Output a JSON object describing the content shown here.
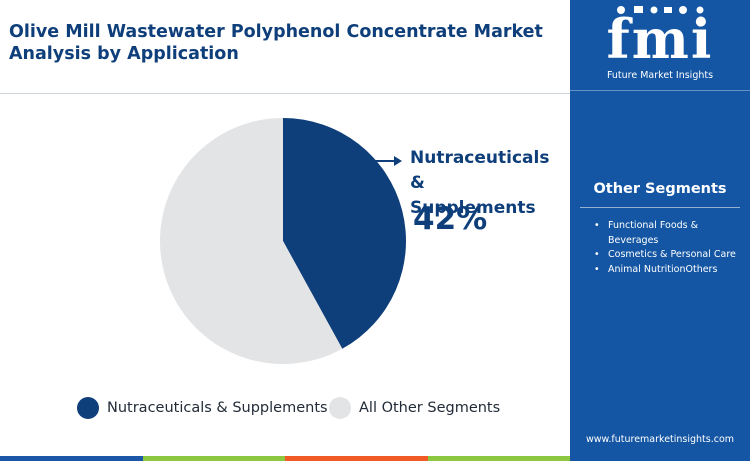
{
  "title": "Olive Mill Wastewater Polyphenol Concentrate Market Analysis by Application",
  "chart_data": {
    "type": "pie",
    "title": "Olive Mill Wastewater Polyphenol Concentrate Market Analysis by Application",
    "slices": [
      {
        "label": "Nutraceuticals & Supplements",
        "value": 42,
        "color": "#0f3f7a"
      },
      {
        "label": "All Other Segments",
        "value": 58,
        "color": "#e3e4e6"
      }
    ],
    "callout": {
      "label": "Nutraceuticals &\nSupplements",
      "value_text": "42%"
    },
    "legend_position": "bottom"
  },
  "legend": [
    {
      "label": "Nutraceuticals & Supplements",
      "color": "#0f3f7a"
    },
    {
      "label": "All Other Segments",
      "color": "#e3e4e6"
    }
  ],
  "sidebar": {
    "logo_text": "fmi",
    "logo_caption": "Future Market Insights",
    "other_segments_title": "Other Segments",
    "other_segments": [
      "Functional Foods & Beverages",
      "Cosmetics & Personal Care",
      "Animal NutritionOthers"
    ],
    "website": "www.futuremarketinsights.com"
  },
  "colors": {
    "brand_navy": "#0f3f7a",
    "sidebar_blue": "#1456a3",
    "bar": [
      "#1b57a6",
      "#8dc63f",
      "#f15a24",
      "#8dc63f"
    ]
  }
}
